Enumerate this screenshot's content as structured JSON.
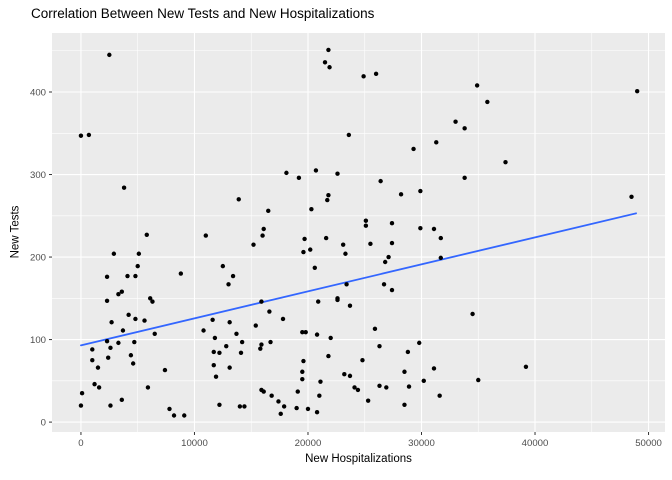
{
  "chart_data": {
    "type": "scatter",
    "title": "Correlation Between New Tests and New Hospitalizations",
    "xlabel": "New Hospitalizations",
    "ylabel": "New Tests",
    "xlim": [
      -2550,
      51450
    ],
    "ylim": [
      -12,
      471.5
    ],
    "x_ticks": [
      0,
      10000,
      20000,
      30000,
      40000,
      50000
    ],
    "y_ticks": [
      0,
      100,
      200,
      300,
      400
    ],
    "x_minor_ticks": [
      5000,
      15000,
      25000,
      35000,
      45000
    ],
    "y_minor_ticks": [
      50,
      150,
      250,
      350,
      450
    ],
    "grid": "on",
    "legend": "none",
    "panel_bg": "#EBEBEB",
    "grid_color": "#FFFFFF",
    "tick_color": "#333333",
    "tick_label_color": "#4D4D4D",
    "point_color": "#000000",
    "line_color": "#3366FF",
    "trend_line": {
      "x1": 0,
      "y1": 93,
      "x2": 48900,
      "y2": 253
    },
    "points": [
      [
        2500,
        445
      ],
      [
        0,
        347
      ],
      [
        700,
        348
      ],
      [
        21800,
        451
      ],
      [
        21500,
        436
      ],
      [
        21900,
        430
      ],
      [
        23600,
        348
      ],
      [
        24900,
        419
      ],
      [
        26000,
        422
      ],
      [
        34900,
        408
      ],
      [
        35800,
        388
      ],
      [
        33000,
        364
      ],
      [
        33800,
        356
      ],
      [
        31300,
        339
      ],
      [
        29300,
        331
      ],
      [
        37400,
        315
      ],
      [
        49000,
        401
      ],
      [
        3800,
        284
      ],
      [
        5800,
        227
      ],
      [
        2900,
        204
      ],
      [
        5100,
        204
      ],
      [
        5000,
        189
      ],
      [
        2300,
        176
      ],
      [
        4100,
        177
      ],
      [
        4800,
        177
      ],
      [
        8800,
        180
      ],
      [
        3300,
        155
      ],
      [
        3600,
        158
      ],
      [
        6100,
        150
      ],
      [
        18100,
        302
      ],
      [
        20700,
        305
      ],
      [
        19200,
        296
      ],
      [
        22600,
        301
      ],
      [
        13900,
        270
      ],
      [
        21800,
        275
      ],
      [
        21700,
        269
      ],
      [
        20300,
        258
      ],
      [
        16500,
        256
      ],
      [
        16100,
        234
      ],
      [
        16000,
        226
      ],
      [
        11000,
        226
      ],
      [
        15200,
        215
      ],
      [
        19700,
        222
      ],
      [
        21600,
        223
      ],
      [
        19600,
        206
      ],
      [
        20200,
        209
      ],
      [
        23100,
        215
      ],
      [
        23300,
        204
      ],
      [
        12500,
        189
      ],
      [
        20600,
        187
      ],
      [
        13400,
        177
      ],
      [
        13000,
        167
      ],
      [
        23400,
        167
      ],
      [
        22600,
        150
      ],
      [
        26400,
        292
      ],
      [
        33800,
        296
      ],
      [
        28200,
        276
      ],
      [
        29900,
        280
      ],
      [
        25100,
        244
      ],
      [
        25100,
        238
      ],
      [
        27400,
        241
      ],
      [
        29900,
        235
      ],
      [
        31100,
        234
      ],
      [
        31700,
        223
      ],
      [
        25500,
        216
      ],
      [
        27400,
        217
      ],
      [
        27100,
        200
      ],
      [
        26800,
        194
      ],
      [
        31700,
        199
      ],
      [
        26700,
        167
      ],
      [
        27400,
        160
      ],
      [
        48500,
        273
      ],
      [
        2300,
        147
      ],
      [
        6300,
        146
      ],
      [
        4200,
        130
      ],
      [
        4800,
        125
      ],
      [
        2700,
        121
      ],
      [
        5600,
        123
      ],
      [
        3700,
        111
      ],
      [
        6500,
        107
      ],
      [
        2300,
        98
      ],
      [
        4700,
        97
      ],
      [
        3300,
        96
      ],
      [
        1000,
        88
      ],
      [
        2600,
        90
      ],
      [
        4400,
        81
      ],
      [
        1000,
        75
      ],
      [
        2400,
        78
      ],
      [
        4600,
        71
      ],
      [
        1500,
        66
      ],
      [
        7400,
        63
      ],
      [
        1200,
        46
      ],
      [
        1600,
        42
      ],
      [
        5900,
        42
      ],
      [
        100,
        35
      ],
      [
        3600,
        27
      ],
      [
        0,
        20
      ],
      [
        2600,
        20
      ],
      [
        7800,
        16
      ],
      [
        8200,
        8
      ],
      [
        9100,
        8
      ],
      [
        15900,
        146
      ],
      [
        16600,
        134
      ],
      [
        17800,
        125
      ],
      [
        20900,
        146
      ],
      [
        22600,
        148
      ],
      [
        23700,
        141
      ],
      [
        11600,
        124
      ],
      [
        13100,
        121
      ],
      [
        10800,
        111
      ],
      [
        11800,
        102
      ],
      [
        13700,
        107
      ],
      [
        15400,
        117
      ],
      [
        14200,
        97
      ],
      [
        12800,
        92
      ],
      [
        11700,
        85
      ],
      [
        12200,
        84
      ],
      [
        14100,
        84
      ],
      [
        15900,
        94
      ],
      [
        15800,
        89
      ],
      [
        16700,
        97
      ],
      [
        19500,
        109
      ],
      [
        19800,
        109
      ],
      [
        20800,
        106
      ],
      [
        22000,
        102
      ],
      [
        11700,
        69
      ],
      [
        13100,
        66
      ],
      [
        11900,
        55
      ],
      [
        19600,
        74
      ],
      [
        21800,
        80
      ],
      [
        19500,
        61
      ],
      [
        19500,
        52
      ],
      [
        21100,
        49
      ],
      [
        23200,
        58
      ],
      [
        23700,
        56
      ],
      [
        24100,
        42
      ],
      [
        21000,
        32
      ],
      [
        19100,
        37
      ],
      [
        15900,
        39
      ],
      [
        16100,
        37
      ],
      [
        16800,
        32
      ],
      [
        17400,
        25
      ],
      [
        17900,
        19
      ],
      [
        19000,
        17
      ],
      [
        20000,
        16
      ],
      [
        20800,
        12
      ],
      [
        17600,
        10
      ],
      [
        12200,
        21
      ],
      [
        14000,
        19
      ],
      [
        14400,
        19
      ],
      [
        34500,
        131
      ],
      [
        25900,
        113
      ],
      [
        26300,
        92
      ],
      [
        29800,
        96
      ],
      [
        28800,
        85
      ],
      [
        24800,
        75
      ],
      [
        28500,
        61
      ],
      [
        31100,
        65
      ],
      [
        30200,
        50
      ],
      [
        35000,
        51
      ],
      [
        28900,
        43
      ],
      [
        26300,
        44
      ],
      [
        26900,
        42
      ],
      [
        24400,
        39
      ],
      [
        25300,
        26
      ],
      [
        28500,
        21
      ],
      [
        31600,
        32
      ],
      [
        39200,
        67
      ]
    ]
  }
}
